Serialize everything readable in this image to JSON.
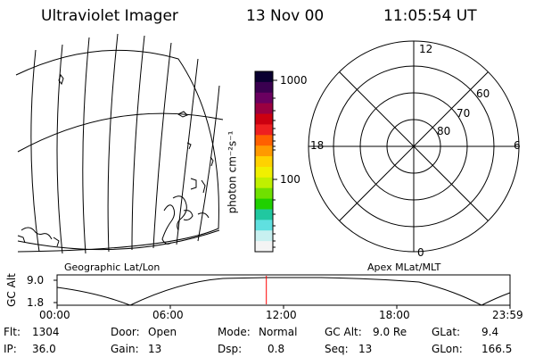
{
  "header": {
    "instrument": "Ultraviolet Imager",
    "date": "13 Nov 00",
    "time": "11:05:54 UT"
  },
  "colorbar": {
    "unit_label": "photon cm⁻²s⁻¹",
    "tick_labels": [
      "1000",
      "100"
    ],
    "colors": [
      "#0a0030",
      "#3a0050",
      "#6a0060",
      "#9a0040",
      "#cc0010",
      "#ee2020",
      "#ff6000",
      "#ff9a00",
      "#ffd200",
      "#f0f000",
      "#c0f000",
      "#70e000",
      "#20d000",
      "#20c8a0",
      "#60e0e0",
      "#c8f0f0",
      "#f4f4f4"
    ]
  },
  "geo_panel": {
    "label": "Geographic Lat/Lon"
  },
  "polar_panel": {
    "label": "Apex MLat/MLT",
    "mlt_labels": {
      "top": "12",
      "left": "18",
      "right": "6",
      "bottom": "0"
    },
    "mlat_labels": [
      "80",
      "70",
      "60"
    ]
  },
  "altitude_plot": {
    "ylabel": "GC Alt",
    "y_ticks": [
      "9.0",
      "1.8"
    ],
    "x_ticks": [
      "00:00",
      "06:00",
      "12:00",
      "18:00",
      "23:59"
    ],
    "current_time_marker_color": "#ff0000",
    "current_time_fraction": 0.462
  },
  "status": {
    "flt": {
      "label": "Flt:",
      "value": "1304"
    },
    "ip": {
      "label": "IP:",
      "value": "36.0"
    },
    "door": {
      "label": "Door:",
      "value": "Open"
    },
    "gain": {
      "label": "Gain:",
      "value": "13"
    },
    "mode": {
      "label": "Mode:",
      "value": "Normal"
    },
    "dsp": {
      "label": "Dsp:",
      "value": "0.8"
    },
    "gcalt": {
      "label": "GC Alt:",
      "value": "9.0 Re"
    },
    "seq": {
      "label": "Seq:",
      "value": "13"
    },
    "glat": {
      "label": "GLat:",
      "value": "9.4"
    },
    "glon": {
      "label": "GLon:",
      "value": "166.5"
    }
  }
}
